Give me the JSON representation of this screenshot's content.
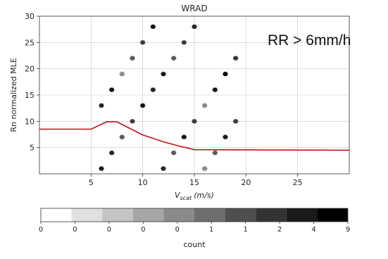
{
  "chart_data": {
    "type": "heatmap",
    "title": "WRAD",
    "xlabel_main": "V",
    "xlabel_sub": "scat",
    "xlabel_unit": "(m/s)",
    "ylabel": "Rn normalized MLE",
    "annotation": "RR > 6mm/h",
    "xlim": [
      0,
      30
    ],
    "ylim": [
      0,
      30
    ],
    "xticks": [
      5,
      10,
      15,
      20,
      25
    ],
    "yticks": [
      5,
      10,
      15,
      20,
      25,
      30
    ],
    "grid": true,
    "density_cells": [
      [
        6,
        0,
        3
      ],
      [
        7,
        1,
        6
      ],
      [
        8,
        2,
        9
      ],
      [
        9,
        3,
        7
      ],
      [
        10,
        4,
        8
      ],
      [
        11,
        5,
        6
      ],
      [
        12,
        6,
        8
      ],
      [
        13,
        7,
        9
      ],
      [
        14,
        8,
        7
      ],
      [
        15,
        9,
        6
      ],
      [
        16,
        0,
        5
      ],
      [
        17,
        1,
        9
      ],
      [
        18,
        2,
        3
      ],
      [
        19,
        3,
        7
      ],
      [
        6,
        4,
        6
      ],
      [
        7,
        5,
        8
      ],
      [
        8,
        6,
        5
      ],
      [
        9,
        7,
        9
      ],
      [
        10,
        8,
        7
      ],
      [
        11,
        9,
        8
      ],
      [
        12,
        0,
        6
      ],
      [
        13,
        1,
        9
      ],
      [
        14,
        2,
        8
      ],
      [
        15,
        3,
        7
      ],
      [
        16,
        4,
        5
      ],
      [
        17,
        5,
        8
      ],
      [
        18,
        6,
        4
      ],
      [
        19,
        7,
        2
      ]
    ],
    "threshold_line": {
      "color": "#cc1111",
      "x": [
        0,
        5,
        6.5,
        7.5,
        10,
        12,
        13.5,
        15,
        30
      ],
      "y": [
        8.5,
        8.5,
        9.9,
        9.9,
        7.4,
        6.1,
        5.3,
        4.6,
        4.5
      ]
    },
    "colorbar": {
      "label": "count",
      "tick_labels": [
        "0",
        "0",
        "0",
        "0",
        "0",
        "1",
        "1",
        "2",
        "4",
        "9"
      ],
      "colors": [
        "#ffffff",
        "#e0e0e0",
        "#c4c4c4",
        "#a6a6a6",
        "#8a8a8a",
        "#6e6e6e",
        "#4f4f4f",
        "#333333",
        "#1a1a1a",
        "#000000"
      ]
    }
  }
}
